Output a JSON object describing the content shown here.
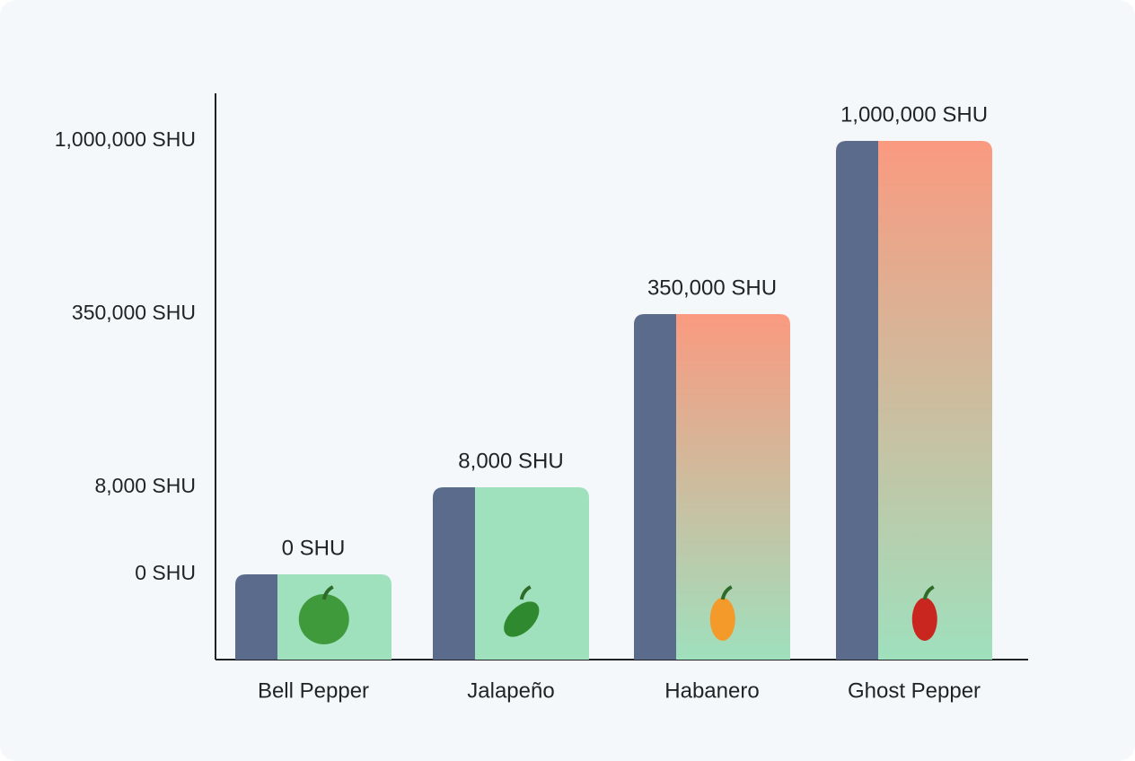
{
  "chart_data": {
    "type": "bar",
    "categories": [
      "Bell Pepper",
      "Jalapeño",
      "Habanero",
      "Ghost Pepper"
    ],
    "values": [
      0,
      8000,
      350000,
      1000000
    ],
    "value_labels": [
      "0 SHU",
      "8,000 SHU",
      "350,000 SHU",
      "1,000,000 SHU"
    ],
    "yticks": [
      {
        "value": 0,
        "label": "0 SHU"
      },
      {
        "value": 8000,
        "label": "8,000 SHU"
      },
      {
        "value": 350000,
        "label": "350,000 SHU"
      },
      {
        "value": 1000000,
        "label": "1,000,000 SHU"
      }
    ],
    "colors": [
      "#9fe0bd",
      "#9fe0bd",
      "#fa9a80",
      "#fa9a80"
    ],
    "base_color": "#9fe0bd",
    "accent_color": "#5a6b8c"
  }
}
